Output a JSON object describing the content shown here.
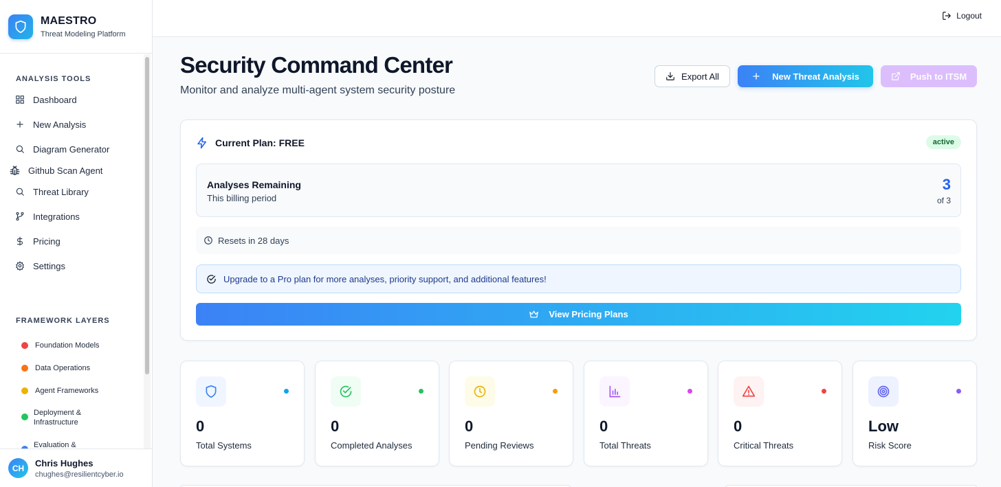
{
  "brand": {
    "title": "MAESTRO",
    "subtitle": "Threat Modeling Platform"
  },
  "sidebar": {
    "analysis_tools_label": "ANALYSIS TOOLS",
    "items": [
      {
        "label": "Dashboard",
        "icon": "dashboard-icon"
      },
      {
        "label": "New Analysis",
        "icon": "plus-icon"
      },
      {
        "label": "Diagram Generator",
        "icon": "search-icon"
      },
      {
        "label": "Github Scan Agent",
        "icon": "bug-icon"
      },
      {
        "label": "Threat Library",
        "icon": "search-icon"
      },
      {
        "label": "Integrations",
        "icon": "git-branch-icon"
      },
      {
        "label": "Pricing",
        "icon": "dollar-icon"
      },
      {
        "label": "Settings",
        "icon": "gear-icon"
      }
    ],
    "framework_layers_label": "FRAMEWORK LAYERS",
    "layers": [
      {
        "label": "Foundation Models",
        "color": "#ef4444"
      },
      {
        "label": "Data Operations",
        "color": "#f97316"
      },
      {
        "label": "Agent Frameworks",
        "color": "#eab308"
      },
      {
        "label": "Deployment &",
        "label2": "Infrastructure",
        "color": "#22c55e"
      },
      {
        "label": "Evaluation &",
        "color": "#3b82f6"
      }
    ]
  },
  "user": {
    "initials": "CH",
    "name": "Chris Hughes",
    "email": "chughes@resilientcyber.io"
  },
  "topbar": {
    "logout_label": "Logout"
  },
  "header": {
    "title": "Security Command Center",
    "subtitle": "Monitor and analyze multi-agent system security posture",
    "export_label": "Export All",
    "new_analysis_label": "New Threat Analysis",
    "push_itsm_label": "Push to ITSM"
  },
  "plan": {
    "title": "Current Plan: FREE",
    "status": "active",
    "remaining_title": "Analyses Remaining",
    "remaining_sub": "This billing period",
    "remaining_count": "3",
    "remaining_total": "of 3",
    "resets_text": "Resets in 28 days",
    "upgrade_text": "Upgrade to a Pro plan for more analyses, priority support, and additional features!",
    "pricing_button": "View Pricing Plans"
  },
  "stats": [
    {
      "value": "0",
      "label": "Total Systems",
      "icon": "shield-icon",
      "color": "#3b82f6",
      "bg": "#eff6ff",
      "dot": "#0ea5e9"
    },
    {
      "value": "0",
      "label": "Completed Analyses",
      "icon": "check-circle-icon",
      "color": "#22c55e",
      "bg": "#f0fdf4",
      "dot": "#22c55e"
    },
    {
      "value": "0",
      "label": "Pending Reviews",
      "icon": "clock-icon",
      "color": "#eab308",
      "bg": "#fefce8",
      "dot": "#f59e0b"
    },
    {
      "value": "0",
      "label": "Total Threats",
      "icon": "bar-chart-icon",
      "color": "#a855f7",
      "bg": "#faf5ff",
      "dot": "#d946ef"
    },
    {
      "value": "0",
      "label": "Critical Threats",
      "icon": "warning-icon",
      "color": "#ef4444",
      "bg": "#fef2f2",
      "dot": "#ef4444"
    },
    {
      "value": "Low",
      "label": "Risk Score",
      "icon": "target-icon",
      "color": "#6366f1",
      "bg": "#eef2ff",
      "dot": "#8b5cf6"
    }
  ]
}
